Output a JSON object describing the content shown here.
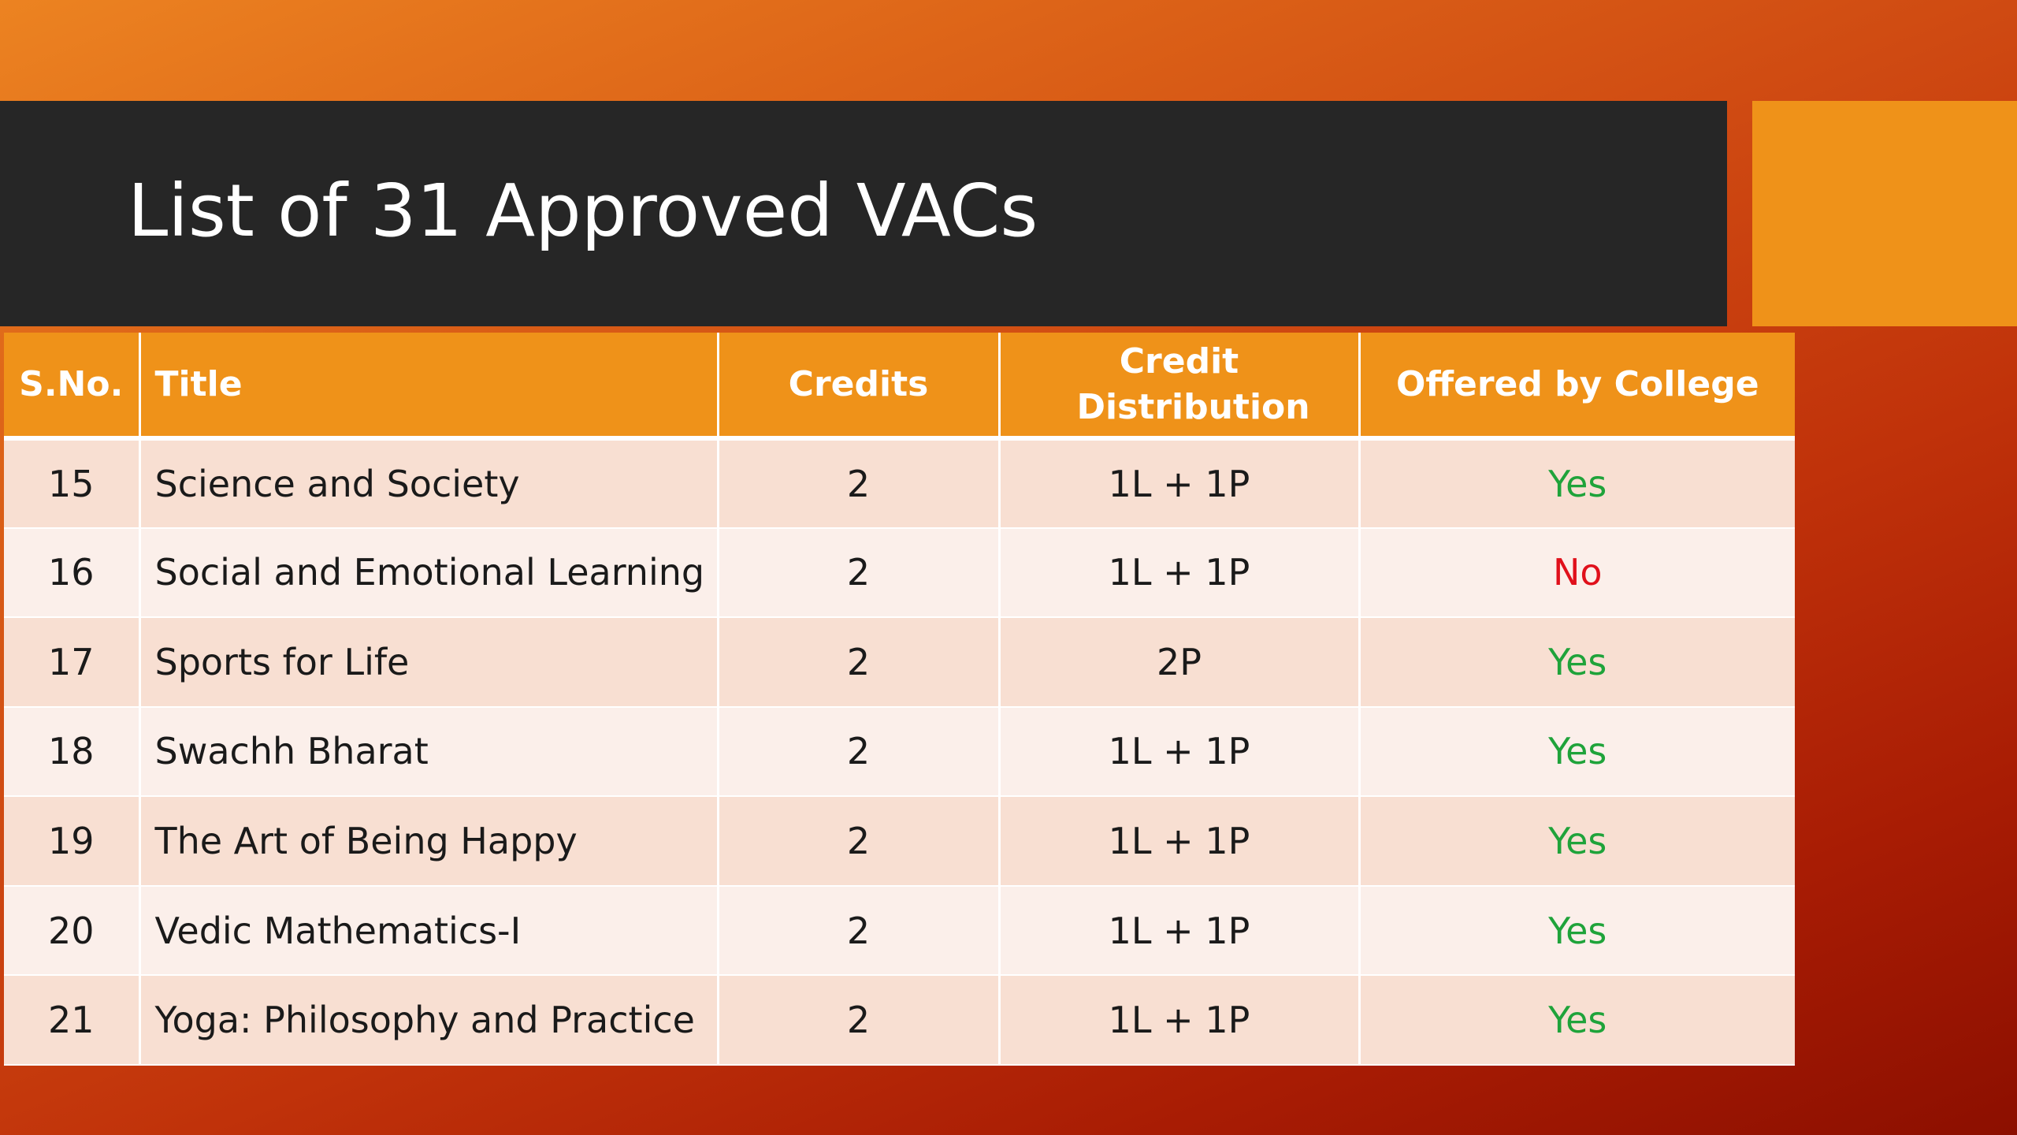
{
  "slide": {
    "title": "List of 31 Approved VACs"
  },
  "table": {
    "headers": [
      "S.No.",
      "Title",
      "Credits",
      "Credit Distribution",
      "Offered by College"
    ],
    "rows": [
      {
        "sno": "15",
        "title": "Science and Society",
        "credits": "2",
        "distribution": "1L + 1P",
        "offered": "Yes"
      },
      {
        "sno": "16",
        "title": "Social and Emotional Learning",
        "credits": "2",
        "distribution": "1L + 1P",
        "offered": "No"
      },
      {
        "sno": "17",
        "title": "Sports for Life",
        "credits": "2",
        "distribution": "2P",
        "offered": "Yes"
      },
      {
        "sno": "18",
        "title": "Swachh Bharat",
        "credits": "2",
        "distribution": "1L + 1P",
        "offered": "Yes"
      },
      {
        "sno": "19",
        "title": "The Art of Being Happy",
        "credits": "2",
        "distribution": "1L + 1P",
        "offered": "Yes"
      },
      {
        "sno": "20",
        "title": "Vedic Mathematics-I",
        "credits": "2",
        "distribution": "1L + 1P",
        "offered": "Yes"
      },
      {
        "sno": "21",
        "title": "Yoga: Philosophy and Practice",
        "credits": "2",
        "distribution": "1L + 1P",
        "offered": "Yes"
      }
    ]
  },
  "colors": {
    "header_orange": "#ef9219",
    "title_bar": "#262626",
    "yes_green": "#1fa33a",
    "no_red": "#e0101b"
  }
}
